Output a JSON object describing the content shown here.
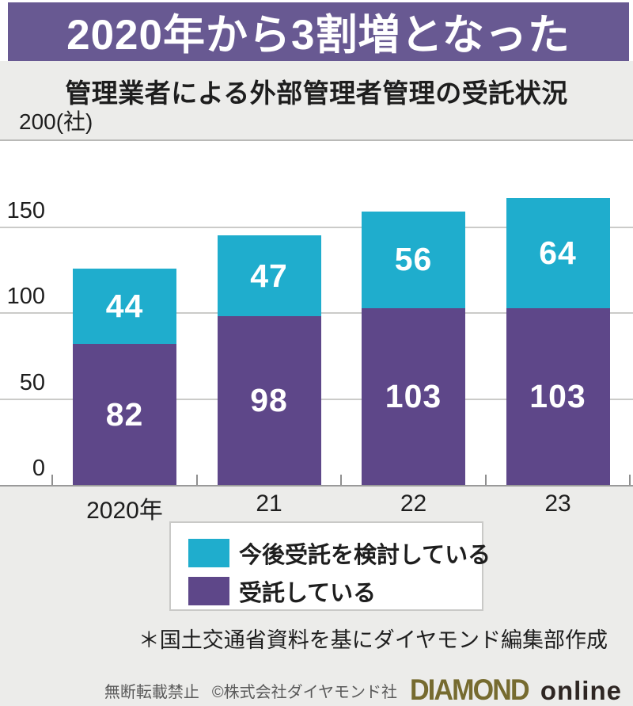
{
  "banner": {
    "title": "2020年から3割増となった"
  },
  "subtitle": "管理業者による外部管理者管理の受託状況",
  "axis_unit_label": "200(社)",
  "chart_data": {
    "type": "bar",
    "stacked": true,
    "title": "管理業者による外部管理者管理の受託状況",
    "categories": [
      "2020年",
      "21",
      "22",
      "23"
    ],
    "series": [
      {
        "name": "受託している",
        "color": "#5e4789",
        "values": [
          82,
          98,
          103,
          103
        ]
      },
      {
        "name": "今後受託を検討している",
        "color": "#1fadcd",
        "values": [
          44,
          47,
          56,
          64
        ]
      }
    ],
    "ylabel": "(社)",
    "ylim": [
      0,
      200
    ],
    "yticks": [
      0,
      50,
      100,
      150,
      200
    ],
    "grid": true,
    "legend_position": "bottom"
  },
  "legend": {
    "items": [
      {
        "label": "今後受託を検討している",
        "color": "#1fadcd"
      },
      {
        "label": "受託している",
        "color": "#5e4789"
      }
    ]
  },
  "footnote": "＊国土交通省資料を基にダイヤモンド編集部作成",
  "footer": {
    "no_reproduction": "無断転載禁止",
    "copyright": "©株式会社ダイヤモンド社",
    "logo_diamond": "DIAMOND",
    "logo_online": "online"
  },
  "colors": {
    "banner_bg": "#685992",
    "bar_purple": "#5e4789",
    "bar_cyan": "#1fadcd",
    "panel_gray": "#ececea",
    "gridline": "#cbcbc9",
    "baseline": "#9a9a9a",
    "logo_olive": "#766b2f",
    "logo_dark": "#2e2623"
  }
}
